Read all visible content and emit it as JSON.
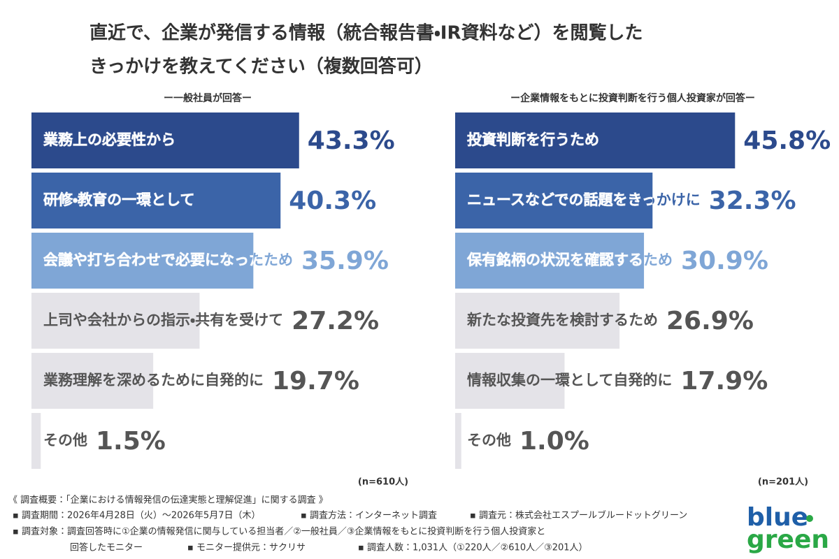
{
  "title": [
    "直近で、企業が発信する情報（統合報告書・IR資料など）を閲覧した",
    "きっかけを教えてください（複数回答可）"
  ],
  "chart_data": [
    {
      "type": "bar",
      "orientation": "horizontal",
      "subtitle": "ー一般社員が回答ー",
      "categories": [
        "業務上の必要性から",
        "研修・教育の一環として",
        "会議や打ち合わせで必要になったため",
        "上司や会社からの指示・共有を受けて",
        "業務理解を深めるために自発的に",
        "その他"
      ],
      "values": [
        43.3,
        40.3,
        35.9,
        27.2,
        19.7,
        1.5
      ],
      "value_labels": [
        "43.3%",
        "40.3%",
        "35.9%",
        "27.2%",
        "19.7%",
        "1.5%"
      ],
      "colors": [
        "#2c4a8c",
        "#3b64a8",
        "#7fa6d6",
        "#e4e3e8",
        "#e4e3e8",
        "#e4e3e8"
      ],
      "xlim": [
        0,
        50
      ],
      "note": "(n=610人)"
    },
    {
      "type": "bar",
      "orientation": "horizontal",
      "subtitle": "ー企業情報をもとに投資判断を行う個人投資家が回答ー",
      "categories": [
        "投資判断を行うため",
        "ニュースなどでの話題をきっかけに",
        "保有銘柄の状況を確認するため",
        "新たな投資先を検討するため",
        "情報収集の一環として自発的に",
        "その他"
      ],
      "values": [
        45.8,
        32.3,
        30.9,
        26.9,
        17.9,
        1.0
      ],
      "value_labels": [
        "45.8%",
        "32.3%",
        "30.9%",
        "26.9%",
        "17.9%",
        "1.0%"
      ],
      "colors": [
        "#2c4a8c",
        "#3b64a8",
        "#7fa6d6",
        "#e4e3e8",
        "#e4e3e8",
        "#e4e3e8"
      ],
      "xlim": [
        0,
        50
      ],
      "note": "(n=201人)"
    }
  ],
  "footer": [
    "《 調査概要：「企業における情報発信の伝達実態と理解促進」に関する調査 》",
    "▪ 調査期間：2026年4月28日（火）〜2026年5月7日（木）",
    "▪ 調査方法：インターネット調査",
    "▪ 調査元：株式会社エスプールブルードットグリーン",
    "▪ 調査対象：調査回答時に①企業の情報発信に関与している担当者／②一般社員／③企業情報をもとに投資判断を行う個人投資家と",
    "回答したモニター",
    "▪ モニター提供元：サクリサ",
    "▪ 調査人数：1,031人（①220人／②610人／③201人）"
  ],
  "logo": [
    "blue",
    "green"
  ]
}
